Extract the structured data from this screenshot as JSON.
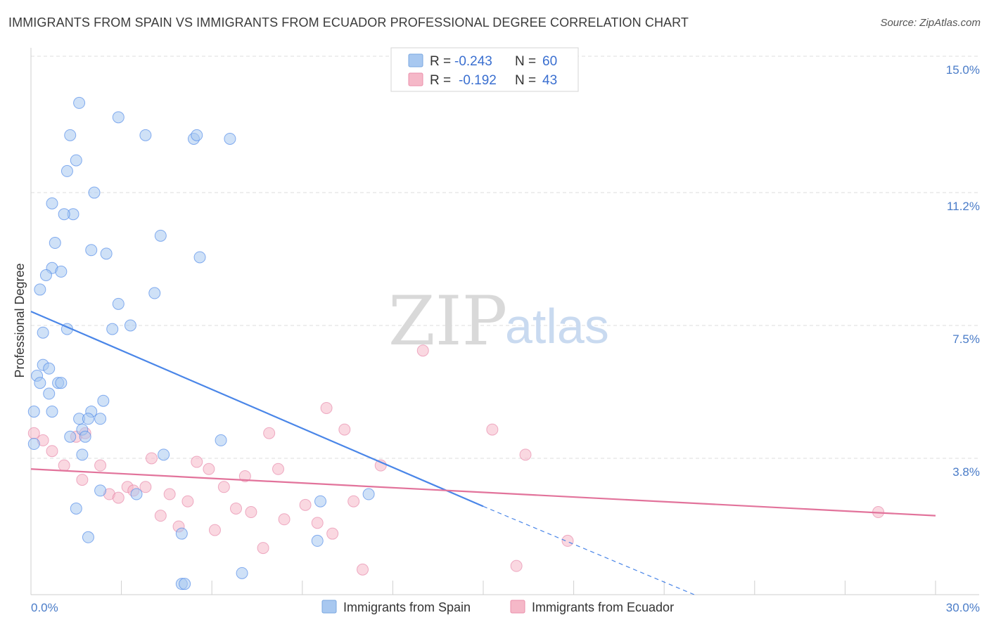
{
  "header": {
    "title": "IMMIGRANTS FROM SPAIN VS IMMIGRANTS FROM ECUADOR PROFESSIONAL DEGREE CORRELATION CHART",
    "source": "Source: ZipAtlas.com"
  },
  "watermark": {
    "zip": "ZIP",
    "atlas": "atlas"
  },
  "legend_box": {
    "r_label": "R =",
    "n_label": "N =",
    "rows": [
      {
        "r": "-0.243",
        "n": "60",
        "color": "#a8c8f0"
      },
      {
        "r": "-0.192",
        "n": "43",
        "color": "#f5b8c8"
      }
    ]
  },
  "bottom_legend": [
    {
      "label": "Immigrants from Spain",
      "color": "#a8c8f0"
    },
    {
      "label": "Immigrants from Ecuador",
      "color": "#f5b8c8"
    }
  ],
  "chart_data": {
    "type": "scatter",
    "title": "IMMIGRANTS FROM SPAIN VS IMMIGRANTS FROM ECUADOR PROFESSIONAL DEGREE CORRELATION CHART",
    "xlabel": "",
    "ylabel": "Professional Degree",
    "xlim": [
      0,
      30
    ],
    "ylim": [
      0,
      15.0
    ],
    "x_tick_labels": [
      {
        "value": 0,
        "label": "0.0%"
      },
      {
        "value": 30,
        "label": "30.0%"
      }
    ],
    "y_tick_labels": [
      {
        "value": 3.8,
        "label": "3.8%"
      },
      {
        "value": 7.5,
        "label": "7.5%"
      },
      {
        "value": 11.2,
        "label": "11.2%"
      },
      {
        "value": 15.0,
        "label": "15.0%"
      }
    ],
    "grid": true,
    "series": [
      {
        "name": "Immigrants from Spain",
        "color": "#4a86e8",
        "fill": "#a8c8f0",
        "trend": {
          "x": [
            0,
            15
          ],
          "y": [
            7.89,
            2.46
          ],
          "dashed_to": [
            22,
            0
          ]
        },
        "points": [
          {
            "x": 1.6,
            "y": 13.7
          },
          {
            "x": 2.9,
            "y": 13.3
          },
          {
            "x": 1.3,
            "y": 12.8
          },
          {
            "x": 3.8,
            "y": 12.8
          },
          {
            "x": 5.4,
            "y": 12.7
          },
          {
            "x": 5.5,
            "y": 12.8
          },
          {
            "x": 6.6,
            "y": 12.7
          },
          {
            "x": 1.5,
            "y": 12.1
          },
          {
            "x": 1.2,
            "y": 11.8
          },
          {
            "x": 2.1,
            "y": 11.2
          },
          {
            "x": 0.7,
            "y": 10.9
          },
          {
            "x": 1.4,
            "y": 10.6
          },
          {
            "x": 1.1,
            "y": 10.6
          },
          {
            "x": 4.3,
            "y": 10.0
          },
          {
            "x": 0.8,
            "y": 9.8
          },
          {
            "x": 2.0,
            "y": 9.6
          },
          {
            "x": 2.5,
            "y": 9.5
          },
          {
            "x": 5.6,
            "y": 9.4
          },
          {
            "x": 0.7,
            "y": 9.1
          },
          {
            "x": 1.0,
            "y": 9.0
          },
          {
            "x": 0.5,
            "y": 8.9
          },
          {
            "x": 0.3,
            "y": 8.5
          },
          {
            "x": 4.1,
            "y": 8.4
          },
          {
            "x": 2.9,
            "y": 8.1
          },
          {
            "x": 3.3,
            "y": 7.5
          },
          {
            "x": 1.2,
            "y": 7.4
          },
          {
            "x": 2.7,
            "y": 7.4
          },
          {
            "x": 0.4,
            "y": 7.3
          },
          {
            "x": 0.4,
            "y": 6.4
          },
          {
            "x": 0.6,
            "y": 6.3
          },
          {
            "x": 0.2,
            "y": 6.1
          },
          {
            "x": 0.3,
            "y": 5.9
          },
          {
            "x": 0.9,
            "y": 5.9
          },
          {
            "x": 1.0,
            "y": 5.9
          },
          {
            "x": 0.6,
            "y": 5.6
          },
          {
            "x": 2.4,
            "y": 5.4
          },
          {
            "x": 0.1,
            "y": 5.1
          },
          {
            "x": 0.7,
            "y": 5.1
          },
          {
            "x": 2.0,
            "y": 5.1
          },
          {
            "x": 1.6,
            "y": 4.9
          },
          {
            "x": 1.9,
            "y": 4.9
          },
          {
            "x": 2.3,
            "y": 4.9
          },
          {
            "x": 1.7,
            "y": 4.6
          },
          {
            "x": 1.3,
            "y": 4.4
          },
          {
            "x": 1.8,
            "y": 4.4
          },
          {
            "x": 0.1,
            "y": 4.2
          },
          {
            "x": 6.3,
            "y": 4.3
          },
          {
            "x": 4.4,
            "y": 3.9
          },
          {
            "x": 1.7,
            "y": 3.9
          },
          {
            "x": 2.3,
            "y": 2.9
          },
          {
            "x": 3.5,
            "y": 2.8
          },
          {
            "x": 11.2,
            "y": 2.8
          },
          {
            "x": 1.5,
            "y": 2.4
          },
          {
            "x": 9.6,
            "y": 2.6
          },
          {
            "x": 5.0,
            "y": 1.7
          },
          {
            "x": 1.9,
            "y": 1.6
          },
          {
            "x": 9.5,
            "y": 1.5
          },
          {
            "x": 5.0,
            "y": 0.3
          },
          {
            "x": 5.1,
            "y": 0.3
          },
          {
            "x": 7.0,
            "y": 0.6
          }
        ]
      },
      {
        "name": "Immigrants from Ecuador",
        "color": "#e2739b",
        "fill": "#f5b8c8",
        "trend": {
          "x": [
            0,
            30
          ],
          "y": [
            3.5,
            2.2
          ]
        },
        "points": [
          {
            "x": 13.0,
            "y": 6.8
          },
          {
            "x": 9.8,
            "y": 5.2
          },
          {
            "x": 10.4,
            "y": 4.6
          },
          {
            "x": 7.9,
            "y": 4.5
          },
          {
            "x": 15.3,
            "y": 4.6
          },
          {
            "x": 16.4,
            "y": 3.9
          },
          {
            "x": 0.1,
            "y": 4.5
          },
          {
            "x": 0.4,
            "y": 4.3
          },
          {
            "x": 0.7,
            "y": 4.0
          },
          {
            "x": 1.5,
            "y": 4.4
          },
          {
            "x": 1.8,
            "y": 4.5
          },
          {
            "x": 1.1,
            "y": 3.6
          },
          {
            "x": 2.3,
            "y": 3.6
          },
          {
            "x": 4.0,
            "y": 3.8
          },
          {
            "x": 5.5,
            "y": 3.7
          },
          {
            "x": 5.9,
            "y": 3.5
          },
          {
            "x": 8.2,
            "y": 3.5
          },
          {
            "x": 7.1,
            "y": 3.3
          },
          {
            "x": 11.6,
            "y": 3.6
          },
          {
            "x": 1.7,
            "y": 3.2
          },
          {
            "x": 3.2,
            "y": 3.0
          },
          {
            "x": 3.8,
            "y": 3.0
          },
          {
            "x": 3.4,
            "y": 2.9
          },
          {
            "x": 2.6,
            "y": 2.8
          },
          {
            "x": 2.9,
            "y": 2.7
          },
          {
            "x": 4.6,
            "y": 2.8
          },
          {
            "x": 6.4,
            "y": 3.0
          },
          {
            "x": 5.2,
            "y": 2.6
          },
          {
            "x": 6.8,
            "y": 2.4
          },
          {
            "x": 9.1,
            "y": 2.5
          },
          {
            "x": 10.7,
            "y": 2.6
          },
          {
            "x": 4.3,
            "y": 2.2
          },
          {
            "x": 7.3,
            "y": 2.3
          },
          {
            "x": 8.4,
            "y": 2.1
          },
          {
            "x": 9.5,
            "y": 2.0
          },
          {
            "x": 4.9,
            "y": 1.9
          },
          {
            "x": 6.1,
            "y": 1.8
          },
          {
            "x": 10.0,
            "y": 1.7
          },
          {
            "x": 7.7,
            "y": 1.3
          },
          {
            "x": 17.8,
            "y": 1.5
          },
          {
            "x": 28.1,
            "y": 2.3
          },
          {
            "x": 11.0,
            "y": 0.7
          },
          {
            "x": 16.1,
            "y": 0.8
          }
        ]
      }
    ]
  }
}
